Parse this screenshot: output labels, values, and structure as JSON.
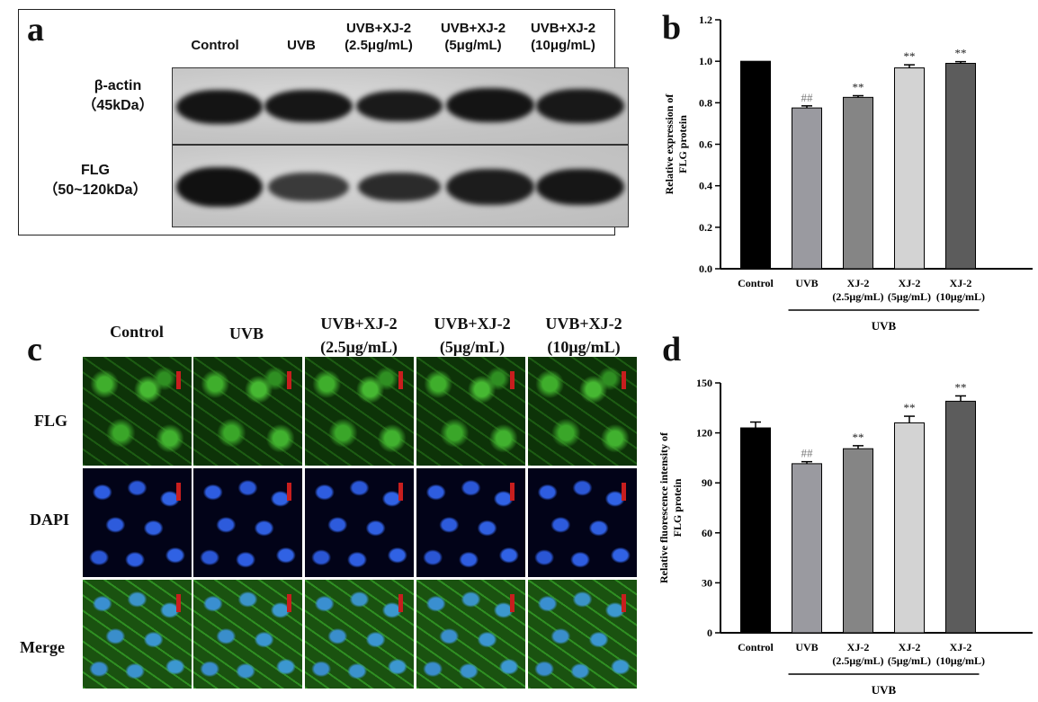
{
  "panels": {
    "a": {
      "letter": "a",
      "columns": [
        "Control",
        "UVB",
        "UVB+XJ-2\n(2.5μg/mL)",
        "UVB+XJ-2\n(5μg/mL)",
        "UVB+XJ-2\n(10μg/mL)"
      ],
      "rows": [
        {
          "label": "β-actin\n（45kDa）"
        },
        {
          "label": "FLG\n（50~120kDa）"
        }
      ]
    },
    "c": {
      "letter": "c",
      "columns": [
        "Control",
        "UVB",
        "UVB+XJ-2\n(2.5μg/mL)",
        "UVB+XJ-2\n(5μg/mL)",
        "UVB+XJ-2\n(10μg/mL)"
      ],
      "rows": [
        "FLG",
        "DAPI",
        "Merge"
      ]
    }
  },
  "chart_data": [
    {
      "panel": "b",
      "letter": "b",
      "type": "bar",
      "categories": [
        "Control",
        "UVB",
        "XJ-2\n(2.5μg/mL)",
        "XJ-2\n(5μg/mL)",
        "XJ-2\n(10μg/mL)"
      ],
      "values": [
        1.0,
        0.775,
        0.826,
        0.968,
        0.99
      ],
      "errors": [
        0.0,
        0.01,
        0.008,
        0.015,
        0.008
      ],
      "annotations": [
        "",
        "##",
        "**",
        "**",
        "**"
      ],
      "ylabel": "Relative expression of\nFLG protein",
      "ylim": [
        0,
        1.2
      ],
      "yticks": [
        "0.0",
        "0.2",
        "0.4",
        "0.6",
        "0.8",
        "1.0",
        "1.2"
      ],
      "group_label": "UVB",
      "bar_colors": [
        "#000000",
        "#9a9aa0",
        "#858585",
        "#d3d3d3",
        "#5c5c5c"
      ]
    },
    {
      "panel": "d",
      "letter": "d",
      "type": "bar",
      "categories": [
        "Control",
        "UVB",
        "XJ-2\n(2.5μg/mL)",
        "XJ-2\n(5μg/mL)",
        "XJ-2\n(10μg/mL)"
      ],
      "values": [
        123,
        101.5,
        110.5,
        126,
        139
      ],
      "errors": [
        3.5,
        1.2,
        1.8,
        4.0,
        3.2
      ],
      "annotations": [
        "",
        "##",
        "**",
        "**",
        "**"
      ],
      "ylabel": "Relative fluorescence intensity of\nFLG protein",
      "ylim": [
        0,
        150
      ],
      "yticks": [
        "0",
        "30",
        "60",
        "90",
        "120",
        "150"
      ],
      "group_label": "UVB",
      "bar_colors": [
        "#000000",
        "#9a9aa0",
        "#858585",
        "#d3d3d3",
        "#5c5c5c"
      ]
    }
  ]
}
